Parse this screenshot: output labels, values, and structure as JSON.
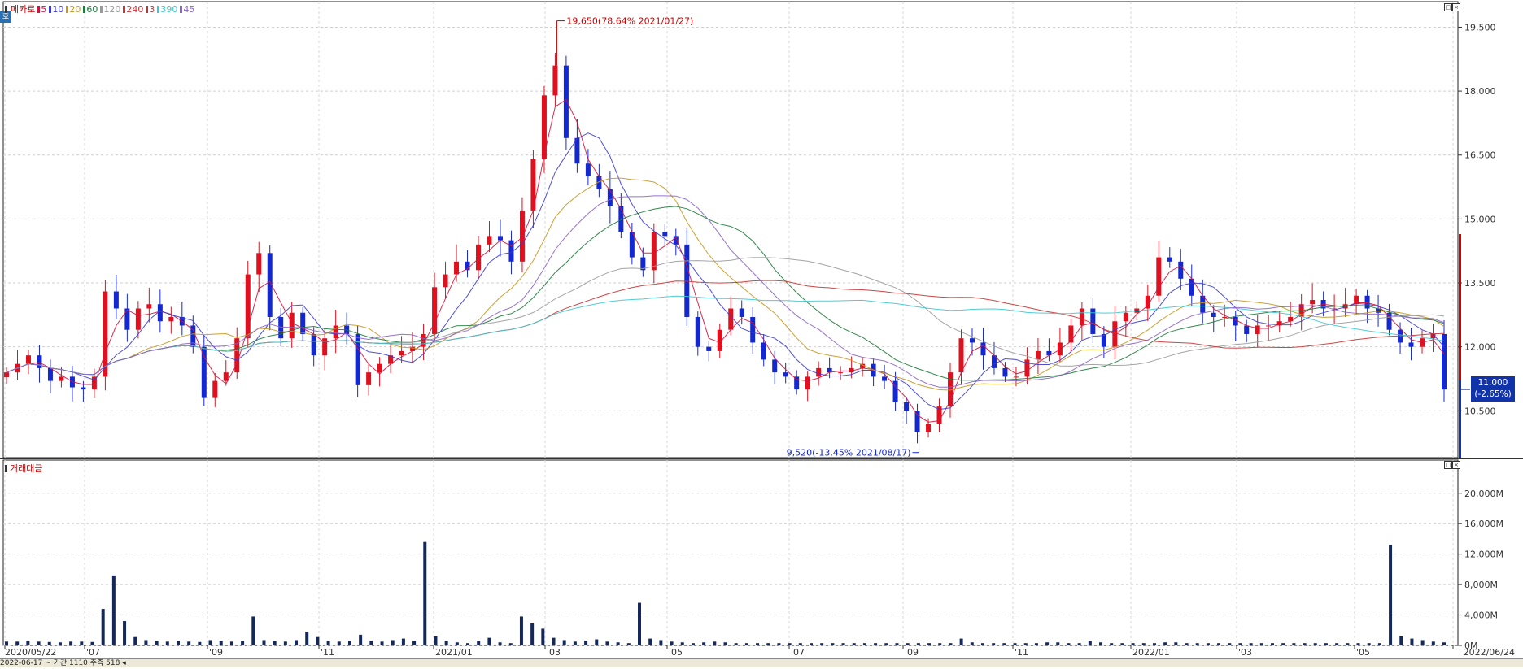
{
  "legend": {
    "name": "메카로",
    "items": [
      {
        "label": "5",
        "color": "#d2143c"
      },
      {
        "label": "10",
        "color": "#3c3cd2"
      },
      {
        "label": "20",
        "color": "#c8961e"
      },
      {
        "label": "60",
        "color": "#1e7a3c"
      },
      {
        "label": "120",
        "color": "#9a9a9a"
      },
      {
        "label": "240",
        "color": "#c83232"
      },
      {
        "label": "3",
        "color": "#aa3c3c"
      },
      {
        "label": "390",
        "color": "#3cc8d2"
      },
      {
        "label": "45",
        "color": "#8c64c8"
      }
    ]
  },
  "volume_legend": {
    "label": "거래대금"
  },
  "badge": "호",
  "price_tag": {
    "price": "11,000",
    "change": "(-2.65%)"
  },
  "bottom_bar": "2022-06-17 ~ 기간 1110 주측 518 ◂",
  "chart_data": [
    {
      "type": "candlestick",
      "title": "",
      "y_ticks": [
        "19,500",
        "18,000",
        "16,500",
        "15,000",
        "13,500",
        "12,000",
        "10,500"
      ],
      "y_tick_values": [
        19500,
        18000,
        16500,
        15000,
        13500,
        12000,
        10500
      ],
      "ylim": [
        9400,
        20100
      ],
      "x_tick_labels": [
        "2020/05/22",
        "'07",
        "'09",
        "'11",
        "2021/01",
        "'03",
        "'05",
        "'07",
        "'09",
        "'11",
        "2022/01",
        "'03",
        "'05",
        "2022/06/24"
      ],
      "annotations": [
        {
          "text": "19,650(78.64% 2021/01/27)",
          "value": 19650
        },
        {
          "text": "9,520(-13.45% 2021/08/17)",
          "value": 9520
        }
      ],
      "last_price": 11000,
      "close_series": [
        11400,
        11600,
        11800,
        11500,
        11200,
        11300,
        11050,
        11000,
        11300,
        13300,
        12900,
        12400,
        12900,
        13000,
        12600,
        12700,
        12500,
        12000,
        10800,
        11200,
        11400,
        12200,
        13700,
        14200,
        12700,
        12200,
        12800,
        12300,
        11800,
        12200,
        12500,
        12300,
        11100,
        11400,
        11600,
        11800,
        11900,
        12000,
        12300,
        13400,
        13700,
        14000,
        13800,
        14400,
        14600,
        14500,
        14000,
        15200,
        16400,
        17900,
        18600,
        16900,
        16300,
        16000,
        15700,
        15300,
        14700,
        14100,
        13800,
        14700,
        14600,
        14400,
        12700,
        12000,
        11900,
        12400,
        12900,
        12700,
        12100,
        11700,
        11400,
        11300,
        11000,
        11300,
        11500,
        11400,
        11400,
        11500,
        11600,
        11300,
        11200,
        10700,
        10500,
        10000,
        10200,
        10600,
        11400,
        12200,
        12100,
        11800,
        11500,
        11300,
        11300,
        11700,
        11900,
        11800,
        12100,
        12500,
        12900,
        12300,
        12000,
        12600,
        12800,
        12900,
        13200,
        14100,
        14000,
        13600,
        13200,
        12800,
        12700,
        12700,
        12500,
        12300,
        12500,
        12500,
        12600,
        12700,
        13000,
        13100,
        12900,
        12900,
        13000,
        13200,
        12900,
        12800,
        12400,
        12100,
        12000,
        12200,
        12300,
        11000
      ]
    },
    {
      "type": "bar",
      "title": "거래대금",
      "y_ticks": [
        "20,000M",
        "16,000M",
        "12,000M",
        "8,000M",
        "4,000M",
        "0M"
      ],
      "y_tick_values": [
        20000,
        16000,
        12000,
        8000,
        4000,
        0
      ],
      "ylim": [
        0,
        23500
      ],
      "values": [
        500,
        500,
        600,
        500,
        450,
        400,
        500,
        500,
        450,
        4800,
        9200,
        3200,
        1100,
        700,
        600,
        500,
        600,
        500,
        450,
        700,
        600,
        500,
        600,
        3800,
        700,
        600,
        500,
        700,
        1800,
        1100,
        600,
        500,
        600,
        1400,
        600,
        500,
        700,
        900,
        600,
        13600,
        1200,
        600,
        400,
        300,
        600,
        1000,
        400,
        300,
        3800,
        2900,
        2200,
        1000,
        700,
        500,
        600,
        800,
        500,
        400,
        300,
        5600,
        900,
        700,
        500,
        400,
        300,
        400,
        500,
        400,
        300,
        300,
        300,
        300,
        300,
        300,
        300,
        300,
        300,
        300,
        300,
        300,
        300,
        300,
        300,
        300,
        300,
        300,
        300,
        300,
        300,
        900,
        400,
        300,
        300,
        300,
        300,
        300,
        300,
        400,
        400,
        300,
        300,
        600,
        400,
        300,
        300,
        300,
        300,
        300,
        400,
        400,
        300,
        300,
        300,
        300,
        300,
        300,
        300,
        300,
        300,
        300,
        300,
        300,
        300,
        300,
        300,
        300,
        300,
        300,
        300,
        13200,
        1200,
        900,
        700,
        500,
        400
      ]
    }
  ]
}
